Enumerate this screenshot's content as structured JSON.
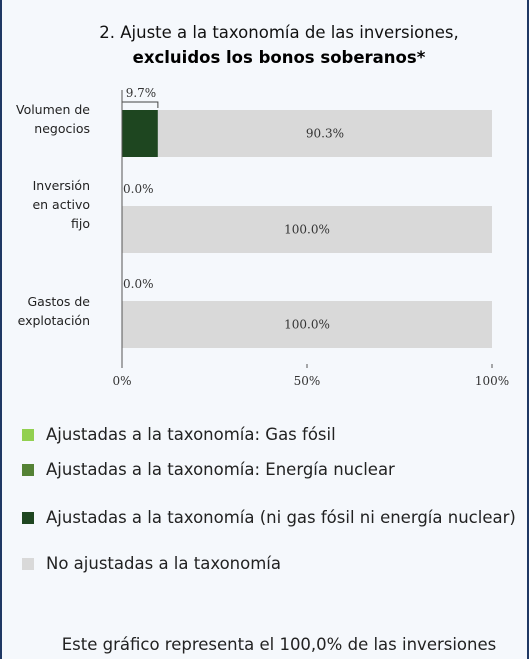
{
  "chart_data": {
    "type": "stacked-bar-horizontal",
    "title": "2. Ajuste a la taxonomía de las inversiones,",
    "subtitle": "excluidos los bonos soberanos*",
    "categories": [
      "Volumen de negocios",
      "Inversión en activo fijo",
      "Gastos de explotación"
    ],
    "series": [
      {
        "name": "Ajustadas a la taxonomía: Gas fósil",
        "color": "#92d050",
        "values": [
          0,
          0,
          0
        ]
      },
      {
        "name": "Ajustadas a la taxonomía: Energía nuclear",
        "color": "#548235",
        "values": [
          0,
          0,
          0
        ]
      },
      {
        "name": "Ajustadas a la taxonomía (ni gas fósil ni energía nuclear)",
        "color": "#1e4620",
        "values": [
          9.7,
          0.0,
          0.0
        ],
        "value_labels": [
          "9.7%",
          "0.0%",
          "0.0%"
        ]
      },
      {
        "name": "No ajustadas a la taxonomía",
        "color": "#d9d9d9",
        "values": [
          90.3,
          100.0,
          100.0
        ],
        "value_labels": [
          "90.3%",
          "100.0%",
          "100.0%"
        ]
      }
    ],
    "xlim": [
      0,
      100
    ],
    "xticks": [
      {
        "value": 0,
        "label": "0%"
      },
      {
        "value": 50,
        "label": "50%"
      },
      {
        "value": 100,
        "label": "100%"
      }
    ],
    "legend": "bottom",
    "note": "Este gráfico representa el 100,0% de las inversiones"
  }
}
